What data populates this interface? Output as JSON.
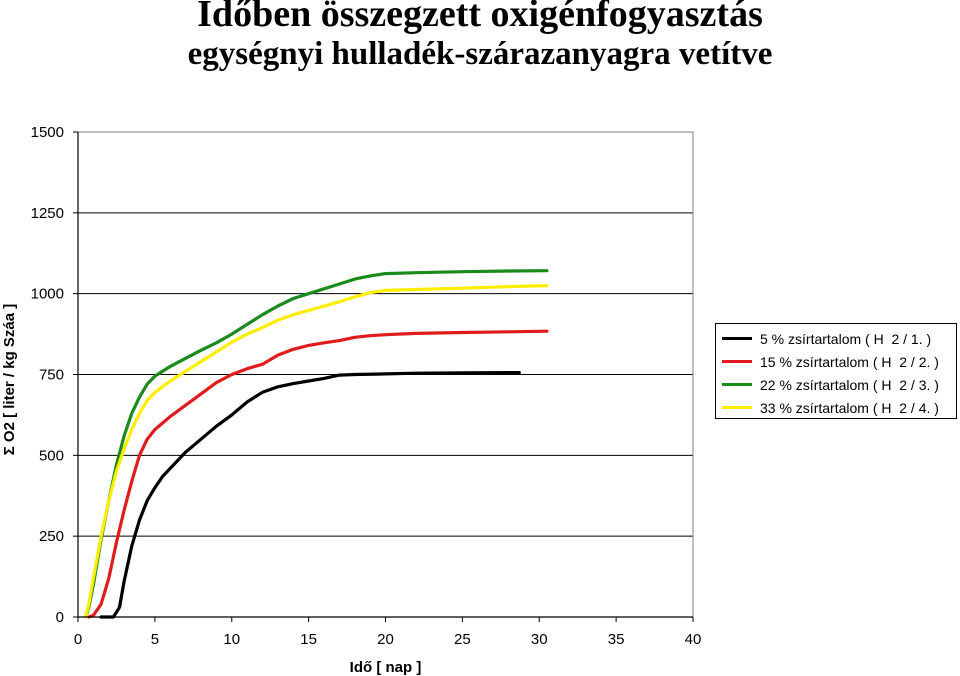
{
  "chart_data": {
    "type": "line",
    "title": "Időben összegzett oxigénfogyasztás",
    "subtitle": "egységnyi hulladék-szárazanyagra vetítve",
    "xlabel": "Idő [ nap ]",
    "ylabel": "Σ O2 [ liter / kg Száa ]",
    "xlim": [
      0,
      40
    ],
    "ylim": [
      0,
      1500
    ],
    "xticks": [
      0,
      5,
      10,
      15,
      20,
      25,
      30,
      35,
      40
    ],
    "yticks": [
      0,
      250,
      500,
      750,
      1000,
      1250,
      1500
    ],
    "grid": "horizontal",
    "legend_position": "right",
    "series": [
      {
        "name": "5 % zsírtartalom ( H  2 / 1. )",
        "color": "#000000",
        "points": [
          [
            1.5,
            0
          ],
          [
            2.3,
            0
          ],
          [
            2.7,
            30
          ],
          [
            3.0,
            110
          ],
          [
            3.5,
            220
          ],
          [
            4.0,
            300
          ],
          [
            4.5,
            360
          ],
          [
            5.0,
            400
          ],
          [
            5.5,
            435
          ],
          [
            6.0,
            460
          ],
          [
            7.0,
            510
          ],
          [
            8.0,
            550
          ],
          [
            9.0,
            590
          ],
          [
            10.0,
            625
          ],
          [
            11.0,
            665
          ],
          [
            12.0,
            695
          ],
          [
            13.0,
            712
          ],
          [
            14.0,
            722
          ],
          [
            15.0,
            730
          ],
          [
            16.0,
            738
          ],
          [
            17.0,
            748
          ],
          [
            18.0,
            750
          ],
          [
            20.0,
            752
          ],
          [
            22.0,
            754
          ],
          [
            25.0,
            755
          ],
          [
            28.7,
            756
          ]
        ]
      },
      {
        "name": "15 % zsírtartalom ( H  2 / 2. )",
        "color": "#e01b1b",
        "points": [
          [
            0.7,
            0
          ],
          [
            1.0,
            5
          ],
          [
            1.5,
            40
          ],
          [
            2.0,
            120
          ],
          [
            2.5,
            230
          ],
          [
            3.0,
            330
          ],
          [
            3.5,
            420
          ],
          [
            4.0,
            500
          ],
          [
            4.5,
            550
          ],
          [
            5.0,
            580
          ],
          [
            6.0,
            620
          ],
          [
            7.0,
            655
          ],
          [
            8.0,
            690
          ],
          [
            9.0,
            725
          ],
          [
            10.0,
            750
          ],
          [
            11.0,
            768
          ],
          [
            12.0,
            782
          ],
          [
            13.0,
            810
          ],
          [
            14.0,
            828
          ],
          [
            15.0,
            840
          ],
          [
            16.0,
            848
          ],
          [
            17.0,
            855
          ],
          [
            18.0,
            865
          ],
          [
            19.0,
            870
          ],
          [
            20.0,
            873
          ],
          [
            22.0,
            877
          ],
          [
            25.0,
            880
          ],
          [
            28.0,
            882
          ],
          [
            30.5,
            884
          ]
        ]
      },
      {
        "name": "22 % zsírtartalom ( H  2 / 3. )",
        "color": "#1a8a1a",
        "points": [
          [
            0.5,
            0
          ],
          [
            0.7,
            30
          ],
          [
            1.0,
            100
          ],
          [
            1.5,
            240
          ],
          [
            2.0,
            360
          ],
          [
            2.5,
            470
          ],
          [
            3.0,
            560
          ],
          [
            3.5,
            630
          ],
          [
            4.0,
            680
          ],
          [
            4.5,
            720
          ],
          [
            5.0,
            745
          ],
          [
            6.0,
            775
          ],
          [
            7.0,
            800
          ],
          [
            8.0,
            825
          ],
          [
            9.0,
            848
          ],
          [
            10.0,
            875
          ],
          [
            11.0,
            905
          ],
          [
            12.0,
            935
          ],
          [
            13.0,
            962
          ],
          [
            14.0,
            985
          ],
          [
            15.0,
            1000
          ],
          [
            16.0,
            1015
          ],
          [
            17.0,
            1030
          ],
          [
            18.0,
            1045
          ],
          [
            19.0,
            1055
          ],
          [
            20.0,
            1062
          ],
          [
            22.0,
            1065
          ],
          [
            25.0,
            1068
          ],
          [
            28.0,
            1070
          ],
          [
            30.5,
            1071
          ]
        ]
      },
      {
        "name": "33 % zsírtartalom ( H  2 / 4. )",
        "color": "#ffee00",
        "points": [
          [
            0.5,
            0
          ],
          [
            0.7,
            40
          ],
          [
            1.0,
            120
          ],
          [
            1.5,
            250
          ],
          [
            2.0,
            360
          ],
          [
            2.5,
            450
          ],
          [
            3.0,
            520
          ],
          [
            3.5,
            580
          ],
          [
            4.0,
            630
          ],
          [
            4.5,
            670
          ],
          [
            5.0,
            695
          ],
          [
            6.0,
            730
          ],
          [
            7.0,
            760
          ],
          [
            8.0,
            790
          ],
          [
            9.0,
            820
          ],
          [
            10.0,
            850
          ],
          [
            11.0,
            875
          ],
          [
            12.0,
            895
          ],
          [
            13.0,
            918
          ],
          [
            14.0,
            935
          ],
          [
            15.0,
            948
          ],
          [
            16.0,
            962
          ],
          [
            17.0,
            975
          ],
          [
            18.0,
            990
          ],
          [
            19.0,
            1003
          ],
          [
            20.0,
            1010
          ],
          [
            22.0,
            1013
          ],
          [
            25.0,
            1017
          ],
          [
            28.0,
            1022
          ],
          [
            30.5,
            1025
          ]
        ]
      }
    ]
  }
}
